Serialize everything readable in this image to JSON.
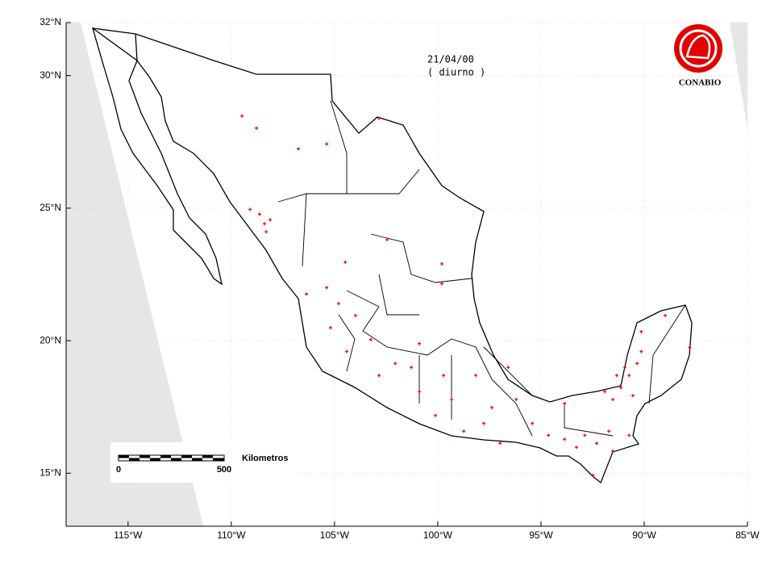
{
  "chart_data": {
    "type": "scatter",
    "annotations": [
      "21/04/00",
      "( diurno )"
    ],
    "logo_text": "CONABIO",
    "scale_bar": {
      "label": "Kilometros",
      "ticks": [
        0,
        500
      ]
    },
    "color": "#ff0000",
    "grid": true,
    "xlim": [
      -118,
      -85
    ],
    "ylim": [
      13,
      32
    ],
    "xticks": [
      {
        "value": -115,
        "label": "115°W"
      },
      {
        "value": -110,
        "label": "110°W"
      },
      {
        "value": -105,
        "label": "105°W"
      },
      {
        "value": -100,
        "label": "100°W"
      },
      {
        "value": -95,
        "label": "95°W"
      },
      {
        "value": -90,
        "label": "90°W"
      },
      {
        "value": -85,
        "label": "85°W"
      }
    ],
    "yticks": [
      {
        "value": 15,
        "label": "15°N"
      },
      {
        "value": 20,
        "label": "20°N"
      },
      {
        "value": 25,
        "label": "25°N"
      },
      {
        "value": 30,
        "label": "30°N"
      },
      {
        "value": 32,
        "label": "32°N"
      }
    ],
    "x": [
      -109.48,
      -108.78,
      -105.38,
      -106.75,
      -102.84,
      -109.09,
      -108.63,
      -108.39,
      -108.31,
      -108.12,
      -104.48,
      -105.38,
      -106.36,
      -104.8,
      -105.19,
      -104.41,
      -103.24,
      -102.84,
      -102.06,
      -101.28,
      -100.89,
      -100.11,
      -99.72,
      -99.33,
      -98.74,
      -98.16,
      -97.77,
      -96.98,
      -96.2,
      -95.42,
      -94.64,
      -93.86,
      -93.28,
      -92.88,
      -92.3,
      -91.71,
      -92.49,
      -91.52,
      -90.73,
      -91.91,
      -91.52,
      -91.13,
      -90.73,
      -90.34,
      -90.14,
      -90.55,
      -91.33,
      -90.94,
      -90.14,
      -88.98,
      -87.8,
      -99.8,
      -99.8,
      -102.45,
      -103.98,
      -100.89,
      -96.59,
      -93.86,
      -97.38
    ],
    "values": [
      28.48,
      28.02,
      27.42,
      27.24,
      28.39,
      24.95,
      24.77,
      24.41,
      24.11,
      24.56,
      22.96,
      22.0,
      21.76,
      21.4,
      20.49,
      19.59,
      20.04,
      18.69,
      19.14,
      18.99,
      18.08,
      17.18,
      18.69,
      17.78,
      16.58,
      18.69,
      16.88,
      16.13,
      17.78,
      16.88,
      16.43,
      16.28,
      15.98,
      16.43,
      16.13,
      16.58,
      14.92,
      15.83,
      16.43,
      18.08,
      17.78,
      18.23,
      18.69,
      19.14,
      19.59,
      17.93,
      18.69,
      18.99,
      20.34,
      20.95,
      19.74,
      22.15,
      22.9,
      23.81,
      20.95,
      19.89,
      18.99,
      17.63,
      17.48
    ]
  }
}
